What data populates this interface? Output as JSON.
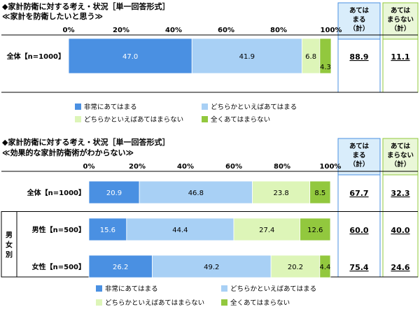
{
  "chart_data": [
    {
      "type": "bar",
      "stacked": true,
      "orientation": "horizontal",
      "title": "◆家計防衛に対する考え・状況［単一回答形式］",
      "subtitle": "≪家計を防衛したいと思う≫",
      "x_ticks": [
        "0%",
        "20%",
        "40%",
        "60%",
        "80%",
        "100%"
      ],
      "xlim": [
        0,
        100
      ],
      "categories": [
        "全体【n=1000】"
      ],
      "series": [
        {
          "name": "非常にあてはまる",
          "color": "#4a90e2",
          "values": [
            47.0
          ]
        },
        {
          "name": "どちらかといえばあてはまる",
          "color": "#a8d0f5",
          "values": [
            41.9
          ]
        },
        {
          "name": "どちらかといえばあてはまらない",
          "color": "#ddf5b8",
          "values": [
            6.8
          ]
        },
        {
          "name": "全くあてはまらない",
          "color": "#92c83e",
          "values": [
            4.3
          ]
        }
      ],
      "labels": [
        [
          "47.0",
          "41.9",
          "6.8",
          "4.3"
        ]
      ],
      "totals_headers": [
        "あてはまる（計）",
        "あてはまらない（計）"
      ],
      "totals": [
        [
          "88.9",
          "11.1"
        ]
      ]
    },
    {
      "type": "bar",
      "stacked": true,
      "orientation": "horizontal",
      "title": "◆家計防衛に対する考え・状況［単一回答形式］",
      "subtitle": "≪効果的な家計防衛術がわからない≫",
      "x_ticks": [
        "0%",
        "20%",
        "40%",
        "60%",
        "80%",
        "100%"
      ],
      "xlim": [
        0,
        100
      ],
      "categories": [
        "全体【n=1000】",
        "男性【n=500】",
        "女性【n=500】"
      ],
      "group_label": "男女別",
      "series": [
        {
          "name": "非常にあてはまる",
          "color": "#4a90e2",
          "values": [
            20.9,
            15.6,
            26.2
          ]
        },
        {
          "name": "どちらかといえばあてはまる",
          "color": "#a8d0f5",
          "values": [
            46.8,
            44.4,
            49.2
          ]
        },
        {
          "name": "どちらかといえばあてはまらない",
          "color": "#ddf5b8",
          "values": [
            23.8,
            27.4,
            20.2
          ]
        },
        {
          "name": "全くあてはまらない",
          "color": "#92c83e",
          "values": [
            8.5,
            12.6,
            4.4
          ]
        }
      ],
      "labels": [
        [
          "20.9",
          "46.8",
          "23.8",
          "8.5"
        ],
        [
          "15.6",
          "44.4",
          "27.4",
          "12.6"
        ],
        [
          "26.2",
          "49.2",
          "20.2",
          "4.4"
        ]
      ],
      "totals_headers": [
        "あてはまる（計）",
        "あてはまらない（計）"
      ],
      "totals": [
        [
          "67.7",
          "32.3"
        ],
        [
          "60.0",
          "40.0"
        ],
        [
          "75.4",
          "24.6"
        ]
      ]
    }
  ],
  "header_colors": {
    "fill_a": "#d9edfb",
    "border_a": "#4a90e2",
    "fill_b": "#eaf7d8",
    "border_b": "#92c83e"
  }
}
